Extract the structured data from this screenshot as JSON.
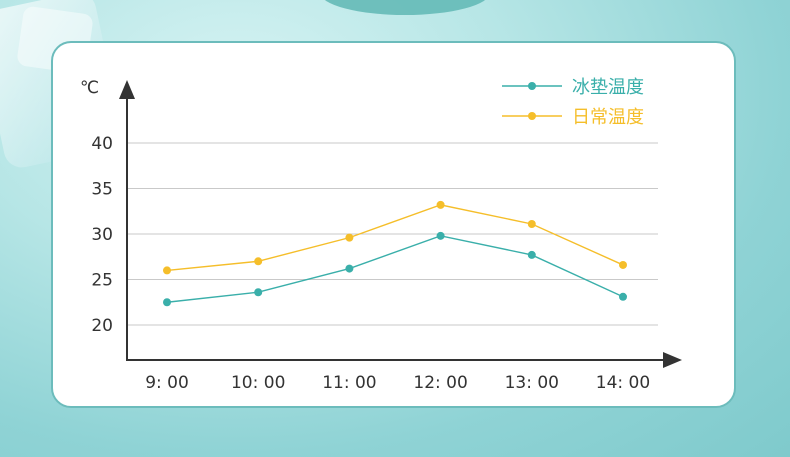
{
  "chart_data": {
    "type": "line",
    "unit": "℃",
    "categories": [
      "9: 00",
      "10: 00",
      "11: 00",
      "12: 00",
      "13: 00",
      "14: 00"
    ],
    "y_ticks": [
      20,
      25,
      30,
      35,
      40
    ],
    "ylim": [
      16,
      44
    ],
    "grid": true,
    "legend_position": "top-right",
    "series": [
      {
        "name": "冰垫温度",
        "color": "#3aafaa",
        "values": [
          22.5,
          23.6,
          26.2,
          29.8,
          27.7,
          23.1
        ]
      },
      {
        "name": "日常温度",
        "color": "#f5be2a",
        "values": [
          26.0,
          27.0,
          29.6,
          33.2,
          31.1,
          26.6
        ]
      }
    ]
  }
}
